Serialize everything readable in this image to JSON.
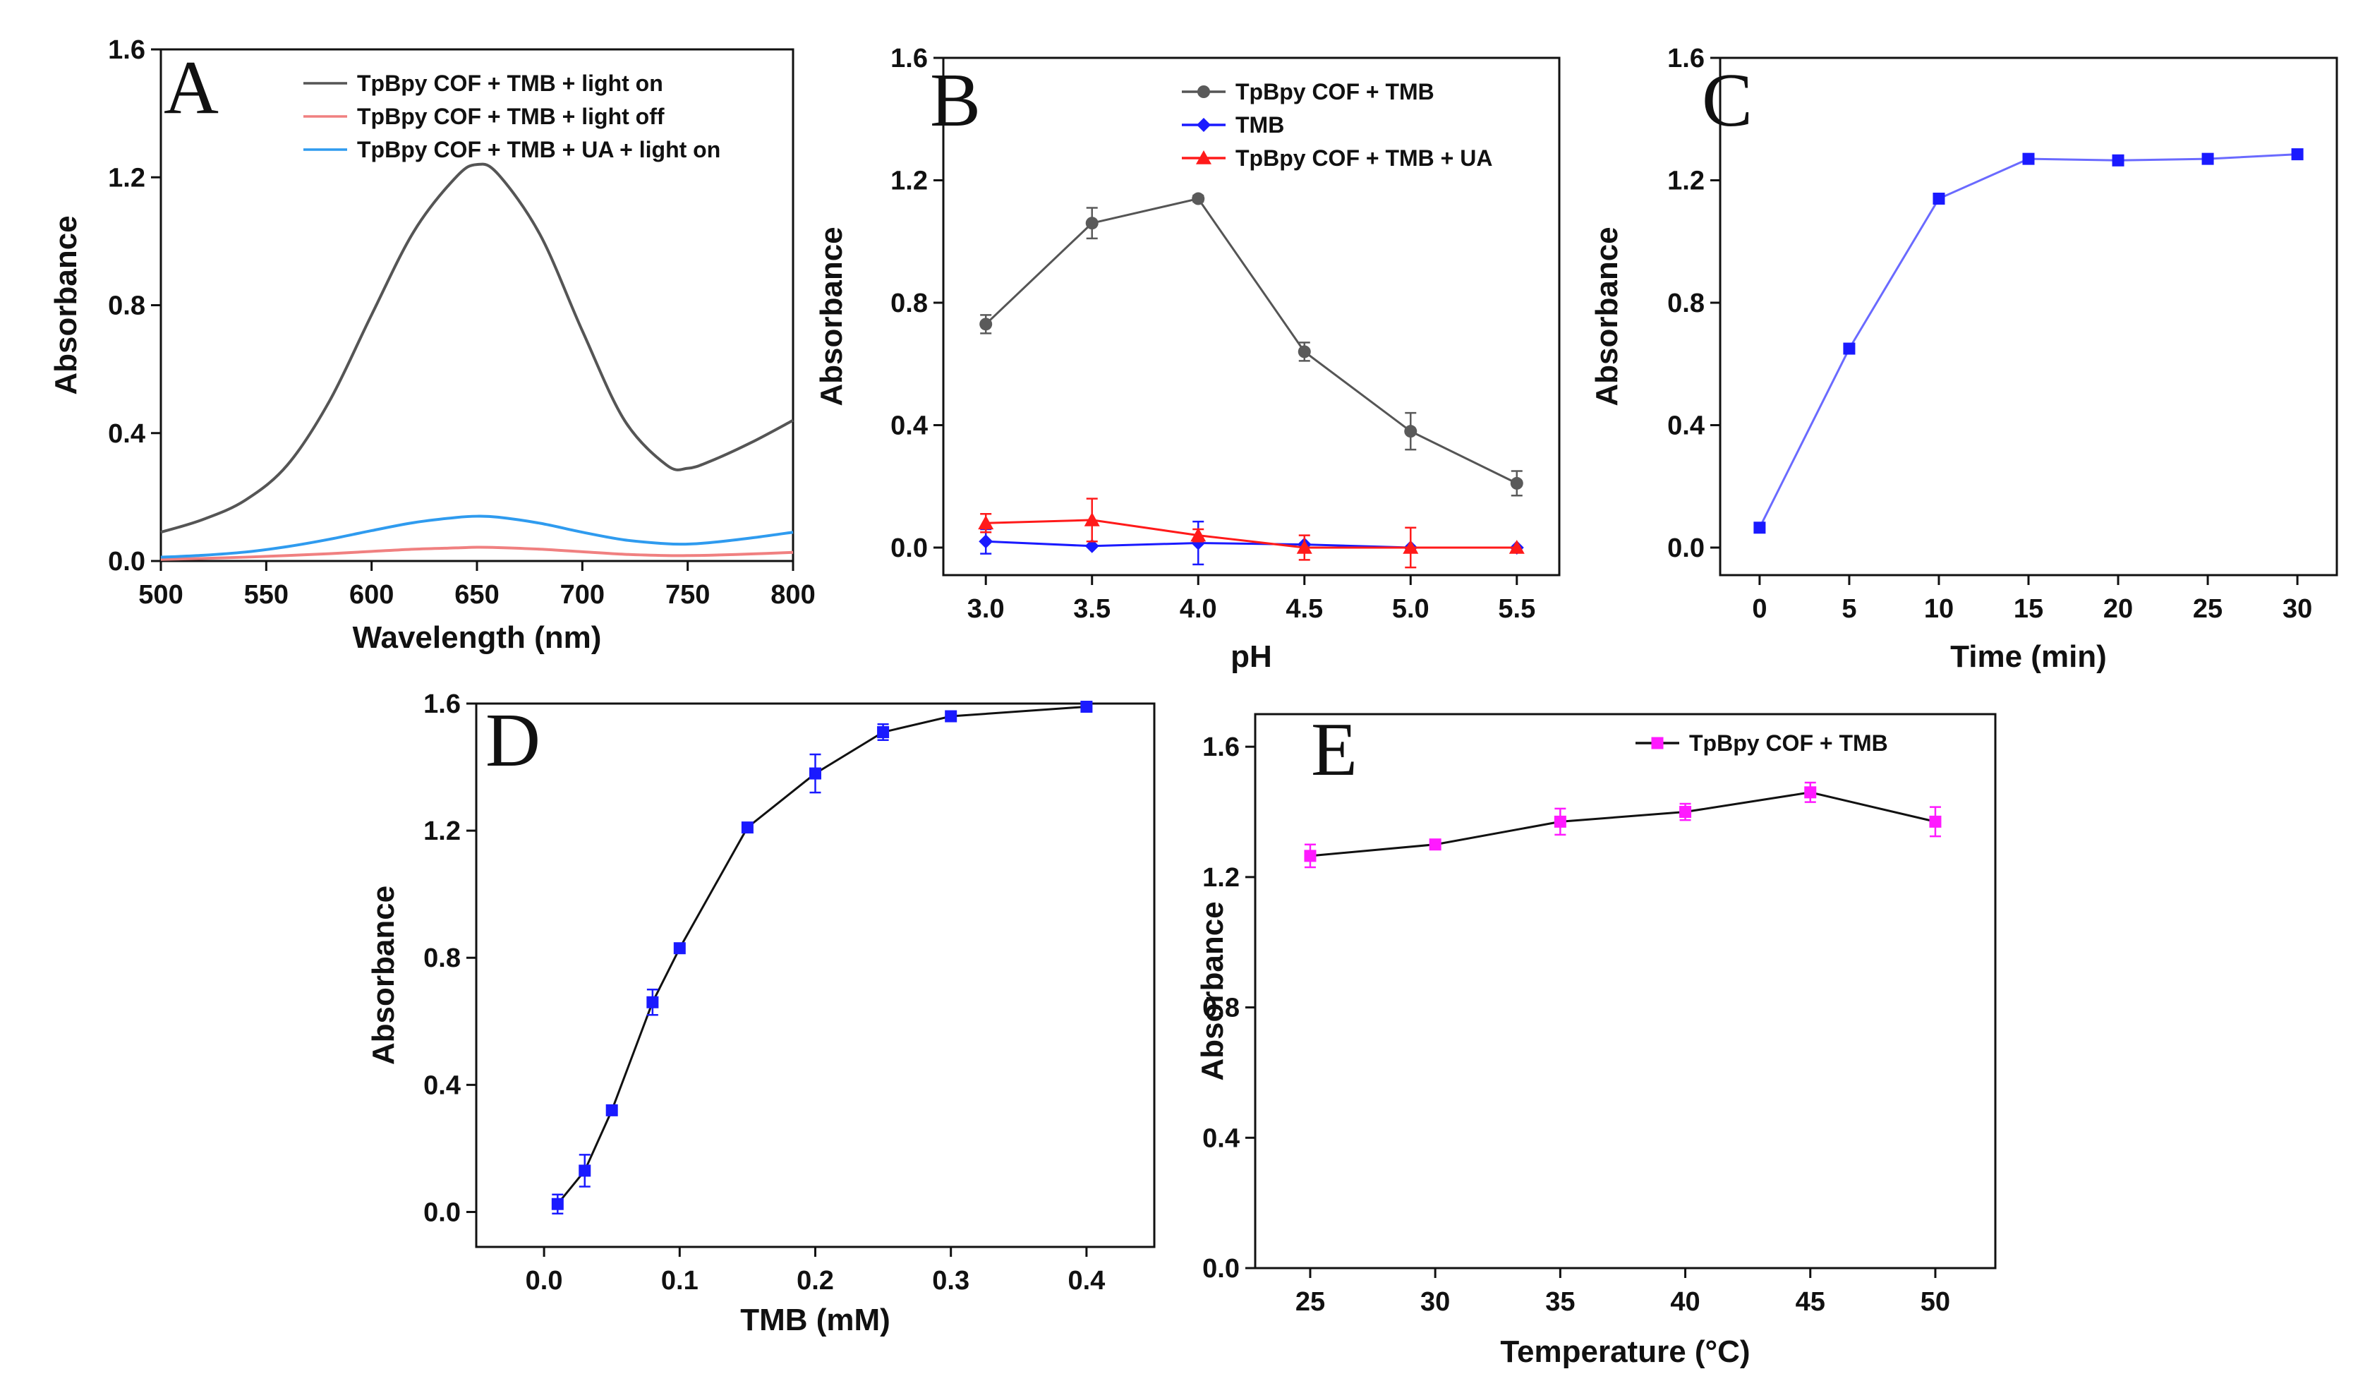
{
  "colors": {
    "black_gray": "#555555",
    "gray_marker": "#5a5a5a",
    "light_red": "#f08080",
    "light_blue": "#2f9bef",
    "blue": "#1a1aff",
    "red": "#ff1a1a",
    "magenta": "#ff1aff",
    "line_purple": "#6a6aff"
  },
  "chart_data": [
    {
      "panel": "A",
      "type": "line",
      "xlabel": "Wavelength (nm)",
      "ylabel": "Absorbance",
      "xlim": [
        500,
        800
      ],
      "ylim": [
        0.0,
        1.6
      ],
      "xticks": [
        500,
        550,
        600,
        650,
        700,
        750,
        800
      ],
      "xtick_labels": [
        "500",
        "550",
        "600",
        "650",
        "700",
        "750",
        "800"
      ],
      "yticks": [
        0.0,
        0.4,
        0.8,
        1.2,
        1.6
      ],
      "ytick_labels": [
        "0.0",
        "0.4",
        "0.8",
        "1.2",
        "1.6"
      ],
      "legend_position": "top-right",
      "x": [
        500,
        520,
        540,
        560,
        580,
        600,
        620,
        640,
        650,
        660,
        680,
        700,
        720,
        740,
        750,
        760,
        780,
        800
      ],
      "series": [
        {
          "name": "TpBpy COF + TMB + light on",
          "color": "#555555",
          "values": [
            0.09,
            0.13,
            0.19,
            0.3,
            0.5,
            0.77,
            1.03,
            1.2,
            1.24,
            1.21,
            1.02,
            0.72,
            0.44,
            0.3,
            0.29,
            0.31,
            0.37,
            0.44
          ]
        },
        {
          "name": "TpBpy COF + TMB + light off",
          "color": "#f08080",
          "values": [
            0.005,
            0.008,
            0.012,
            0.017,
            0.023,
            0.03,
            0.037,
            0.041,
            0.043,
            0.042,
            0.037,
            0.029,
            0.021,
            0.017,
            0.017,
            0.018,
            0.022,
            0.027
          ]
        },
        {
          "name": "TpBpy COF + TMB + UA + light on",
          "color": "#2f9bef",
          "values": [
            0.012,
            0.018,
            0.028,
            0.045,
            0.068,
            0.095,
            0.12,
            0.136,
            0.14,
            0.137,
            0.118,
            0.09,
            0.066,
            0.054,
            0.053,
            0.057,
            0.072,
            0.09
          ]
        }
      ]
    },
    {
      "panel": "B",
      "type": "line",
      "xlabel": "pH",
      "ylabel": "Absorbance",
      "xlim": [
        2.8,
        5.7
      ],
      "ylim": [
        -0.09,
        1.6
      ],
      "xticks": [
        3.0,
        3.5,
        4.0,
        4.5,
        5.0,
        5.5
      ],
      "xtick_labels": [
        "3.0",
        "3.5",
        "4.0",
        "4.5",
        "5.0",
        "5.5"
      ],
      "yticks": [
        0.0,
        0.4,
        0.8,
        1.2,
        1.6
      ],
      "ytick_labels": [
        "0.0",
        "0.4",
        "0.8",
        "1.2",
        "1.6"
      ],
      "legend_position": "top-right",
      "x": [
        3.0,
        3.5,
        4.0,
        4.5,
        5.0,
        5.5
      ],
      "series": [
        {
          "name": "TpBpy COF + TMB",
          "color": "#5a5a5a",
          "line_color": "#555555",
          "marker": "circle",
          "values": [
            0.73,
            1.06,
            1.14,
            0.64,
            0.38,
            0.21
          ],
          "errors": [
            0.03,
            0.05,
            0.01,
            0.03,
            0.06,
            0.04
          ]
        },
        {
          "name": "TMB",
          "color": "#1a1aff",
          "line_color": "#1a1aff",
          "marker": "diamond",
          "values": [
            0.02,
            0.005,
            0.015,
            0.01,
            0.0,
            0.0
          ],
          "errors": [
            0.04,
            0.0,
            0.07,
            0.0,
            0.0,
            0.0
          ]
        },
        {
          "name": "TpBpy COF + TMB + UA",
          "color": "#ff1a1a",
          "line_color": "#ff1a1a",
          "marker": "triangle",
          "values": [
            0.08,
            0.09,
            0.04,
            0.0,
            0.0,
            0.0
          ],
          "errors": [
            0.03,
            0.07,
            0.02,
            0.04,
            0.065,
            0.0
          ]
        }
      ]
    },
    {
      "panel": "C",
      "type": "line",
      "xlabel": "Time (min)",
      "ylabel": "Absorbance",
      "xlim": [
        -2.2,
        32.2
      ],
      "ylim": [
        -0.09,
        1.6
      ],
      "xticks": [
        0,
        5,
        10,
        15,
        20,
        25,
        30
      ],
      "xtick_labels": [
        "0",
        "5",
        "10",
        "15",
        "20",
        "25",
        "30"
      ],
      "yticks": [
        0.0,
        0.4,
        0.8,
        1.2,
        1.6
      ],
      "ytick_labels": [
        "0.0",
        "0.4",
        "0.8",
        "1.2",
        "1.6"
      ],
      "x": [
        0,
        5,
        10,
        15,
        20,
        25,
        30
      ],
      "series": [
        {
          "name": "",
          "color": "#1a1aff",
          "line_color": "#6a6aff",
          "marker": "square",
          "values": [
            0.065,
            0.65,
            1.14,
            1.27,
            1.265,
            1.27,
            1.285
          ],
          "errors": [
            0,
            0,
            0,
            0,
            0,
            0,
            0
          ]
        }
      ]
    },
    {
      "panel": "D",
      "type": "line",
      "xlabel": "TMB (mM)",
      "ylabel": "Absorbance",
      "xlim": [
        -0.05,
        0.45
      ],
      "ylim": [
        -0.11,
        1.6
      ],
      "xticks": [
        0.0,
        0.1,
        0.2,
        0.3,
        0.4
      ],
      "xtick_labels": [
        "0.0",
        "0.1",
        "0.2",
        "0.3",
        "0.4"
      ],
      "yticks": [
        0.0,
        0.4,
        0.8,
        1.2,
        1.6
      ],
      "ytick_labels": [
        "0.0",
        "0.4",
        "0.8",
        "1.2",
        "1.6"
      ],
      "x": [
        0.01,
        0.03,
        0.05,
        0.08,
        0.1,
        0.15,
        0.2,
        0.25,
        0.3,
        0.4
      ],
      "series": [
        {
          "name": "",
          "color": "#1a1aff",
          "line_color": "#111111",
          "marker": "square",
          "values": [
            0.025,
            0.13,
            0.32,
            0.66,
            0.83,
            1.21,
            1.38,
            1.51,
            1.56,
            1.59
          ],
          "errors": [
            0.03,
            0.05,
            0.0,
            0.04,
            0.0,
            0.0,
            0.06,
            0.025,
            0.0,
            0.0
          ]
        }
      ]
    },
    {
      "panel": "E",
      "type": "line",
      "xlabel": "Temperature (°C)",
      "ylabel": "Absorbance",
      "xlim": [
        22.8,
        52.4
      ],
      "ylim": [
        0.0,
        1.7
      ],
      "xticks": [
        25,
        30,
        35,
        40,
        45,
        50
      ],
      "xtick_labels": [
        "25",
        "30",
        "35",
        "40",
        "45",
        "50"
      ],
      "yticks": [
        0.0,
        0.4,
        0.8,
        1.2,
        1.6
      ],
      "ytick_labels": [
        "0.0",
        "0.4",
        "0.8",
        "1.2",
        "1.6"
      ],
      "legend_position": "top-right",
      "x": [
        25,
        30,
        35,
        40,
        45,
        50
      ],
      "series": [
        {
          "name": "TpBpy COF + TMB",
          "color": "#ff1aff",
          "line_color": "#111111",
          "marker": "square",
          "values": [
            1.265,
            1.3,
            1.37,
            1.4,
            1.46,
            1.37
          ],
          "errors": [
            0.035,
            0.0,
            0.04,
            0.025,
            0.03,
            0.045
          ]
        }
      ]
    }
  ]
}
